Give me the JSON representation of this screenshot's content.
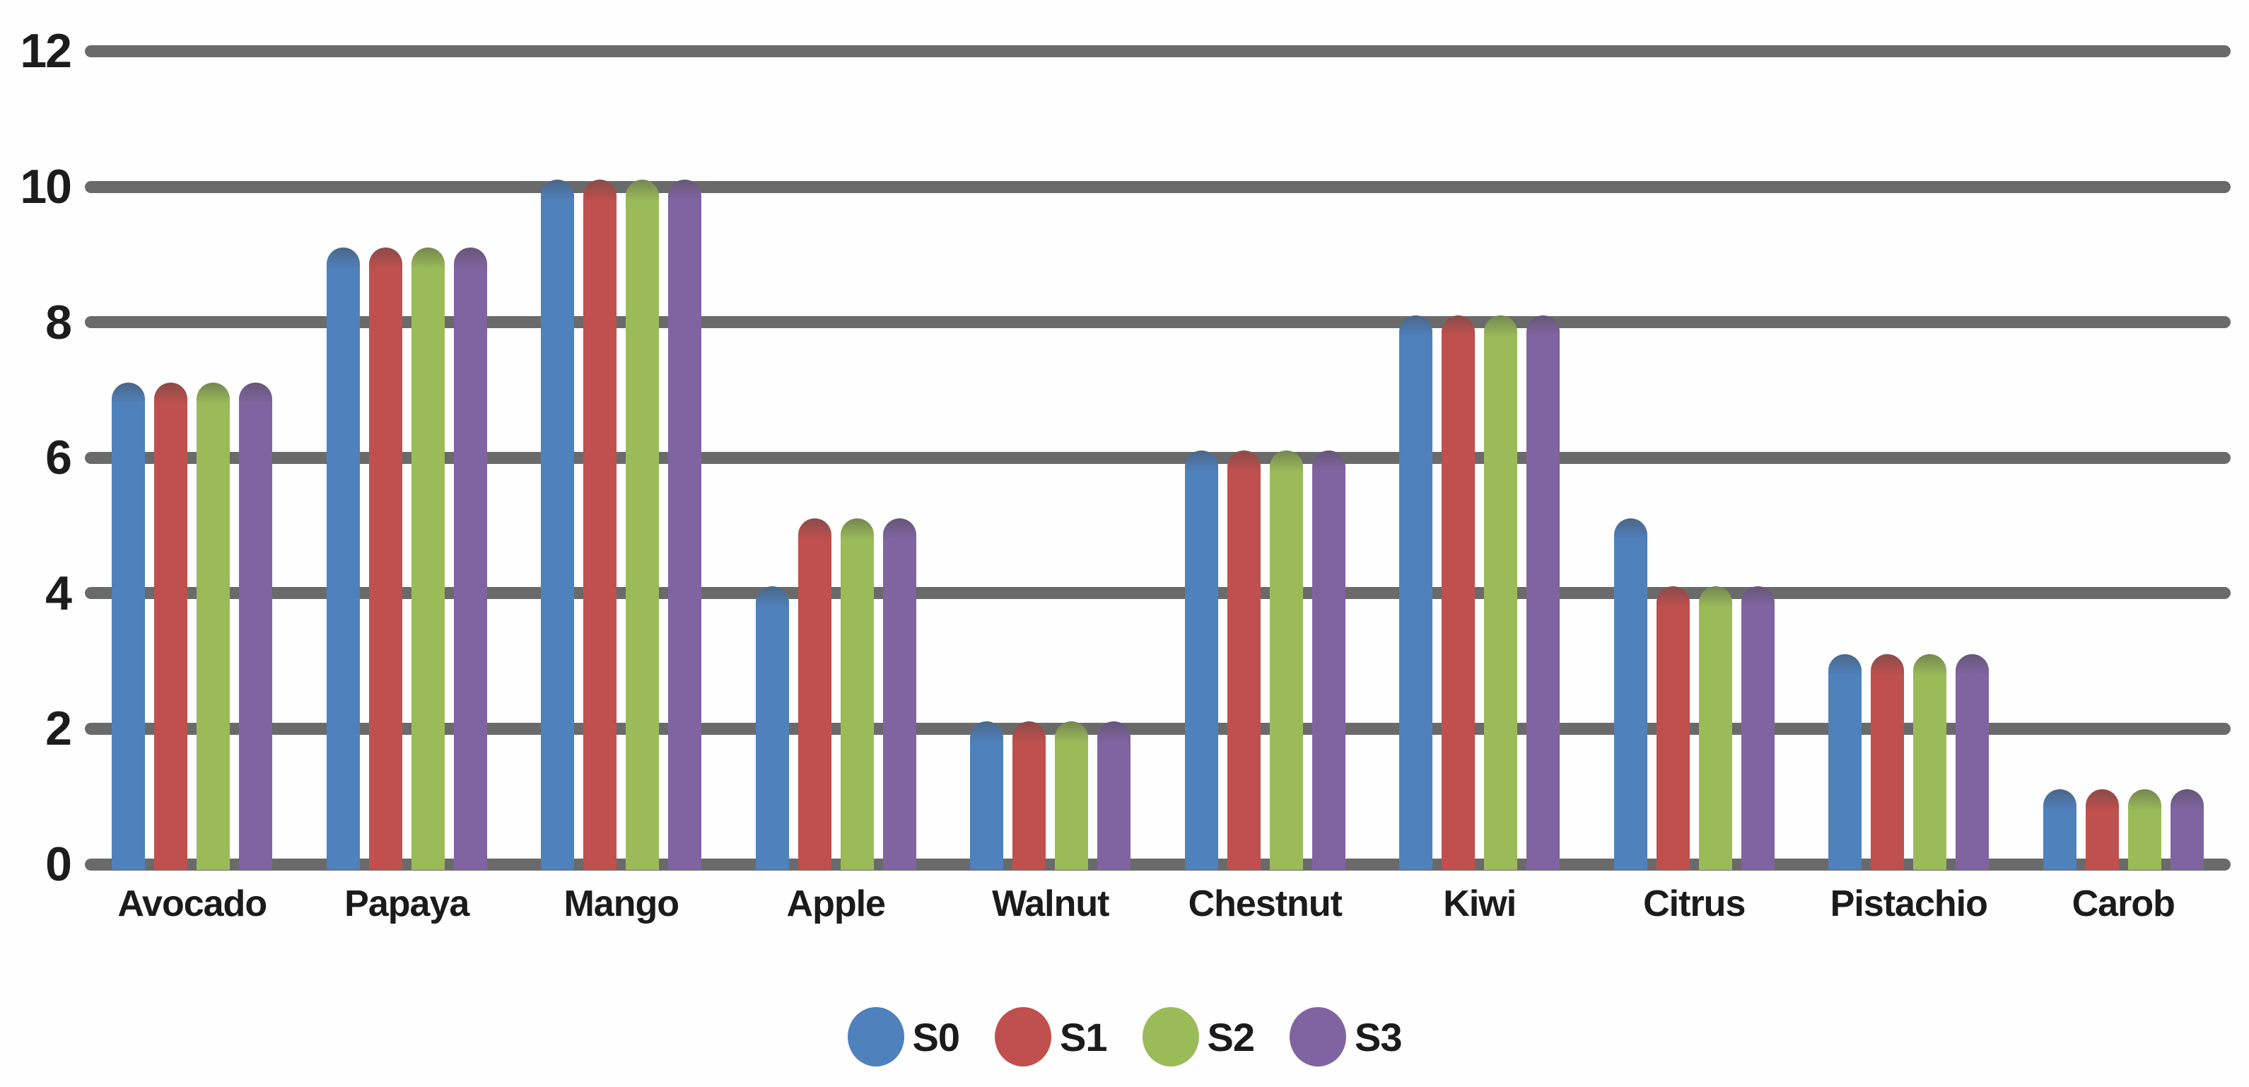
{
  "chart_data": {
    "type": "bar",
    "title": "",
    "xlabel": "",
    "ylabel": "",
    "categories": [
      "Avocado",
      "Papaya",
      "Mango",
      "Apple",
      "Walnut",
      "Chestnut",
      "Kiwi",
      "Citrus",
      "Pistachio",
      "Carob"
    ],
    "series": [
      {
        "name": "S0",
        "color": "#4F81BD",
        "values": [
          7,
          9,
          10,
          4,
          2,
          6,
          8,
          5,
          3,
          1
        ]
      },
      {
        "name": "S1",
        "color": "#C0504D",
        "values": [
          7,
          9,
          10,
          5,
          2,
          6,
          8,
          4,
          3,
          1
        ]
      },
      {
        "name": "S2",
        "color": "#9BBB59",
        "values": [
          7,
          9,
          10,
          5,
          2,
          6,
          8,
          4,
          3,
          1
        ]
      },
      {
        "name": "S3",
        "color": "#8064A2",
        "values": [
          7,
          9,
          10,
          5,
          2,
          6,
          8,
          4,
          3,
          1
        ]
      }
    ],
    "ylim": [
      0,
      12
    ],
    "yticks": [
      0,
      2,
      4,
      6,
      8,
      10,
      12
    ],
    "grid": true,
    "legend_position": "bottom"
  },
  "colors": {
    "gridline": "#6A6A6A",
    "axis_text": "#1C1C1C",
    "background": "#FEFEFE"
  }
}
